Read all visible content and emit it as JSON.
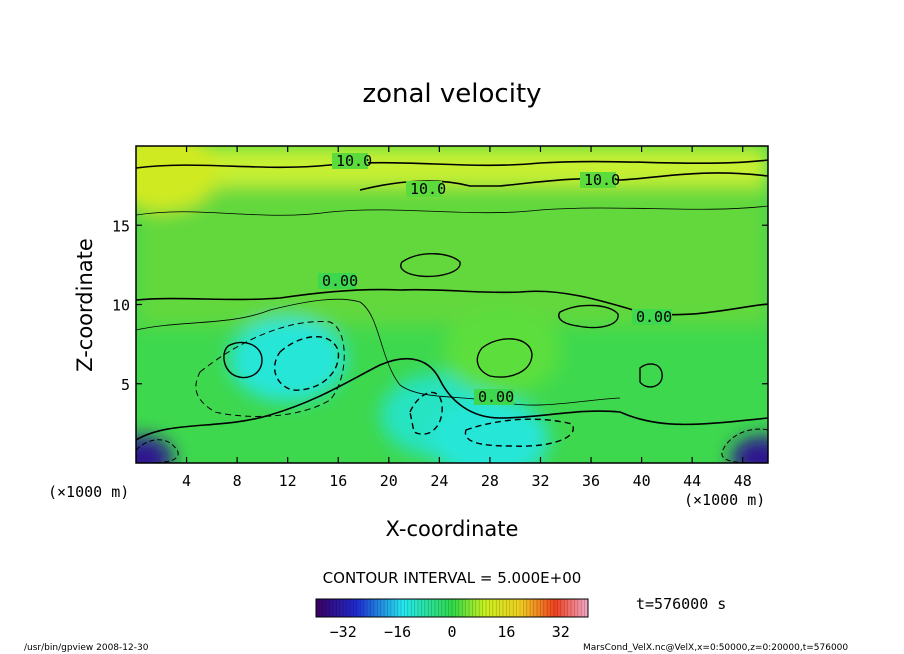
{
  "chart_data": {
    "type": "heatmap",
    "title": "zonal velocity",
    "xlabel": "X-coordinate",
    "ylabel": "Z-coordinate",
    "x_unit_left": "(×1000 m)",
    "x_unit_right": "(×1000 m)",
    "xlim": [
      0,
      50
    ],
    "ylim": [
      0,
      20
    ],
    "x_ticks": [
      4,
      8,
      12,
      16,
      20,
      24,
      28,
      32,
      36,
      40,
      44,
      48
    ],
    "y_ticks": [
      5,
      10,
      15
    ],
    "contour_interval_text": "CONTOUR INTERVAL = 5.000E+00",
    "contour_labels": [
      "10.0",
      "10.0",
      "10.0",
      "0.00",
      "0.00",
      "0.00"
    ],
    "colorbar": {
      "min": -40,
      "max": 40,
      "ticks": [
        "−32",
        "−16",
        "0",
        "16",
        "32"
      ]
    },
    "time_text": "t=576000 s",
    "footer_left": "/usr/bin/gpview   2008-12-30",
    "footer_right": "MarsCond_VelX.nc@VelX,x=0:50000,z=0:20000,t=576000",
    "notable_values": [
      {
        "x": 2,
        "z": 18.5,
        "u": 12
      },
      {
        "x": 12,
        "z": 6.5,
        "u": -12
      },
      {
        "x": 24,
        "z": 3,
        "u": -10
      },
      {
        "x": 28,
        "z": 1.5,
        "u": -12
      },
      {
        "x": 0.5,
        "z": 0.3,
        "u": -35
      },
      {
        "x": 49.5,
        "z": 0.3,
        "u": -35
      },
      {
        "x": 29,
        "z": 7,
        "u": 3
      }
    ]
  }
}
